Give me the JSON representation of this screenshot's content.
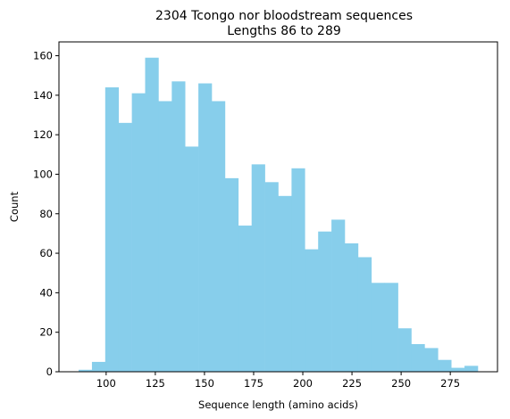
{
  "chart_data": {
    "type": "bar",
    "title": "2304 Tcongo nor bloodstream sequences",
    "subtitle": "Lengths 86 to 289",
    "xlabel": "Sequence length (amino acids)",
    "ylabel": "Count",
    "xlim": [
      76,
      299
    ],
    "ylim": [
      0,
      167
    ],
    "xticks": [
      100,
      125,
      150,
      175,
      200,
      225,
      250,
      275
    ],
    "yticks": [
      0,
      20,
      40,
      60,
      80,
      100,
      120,
      140,
      160
    ],
    "grid": false,
    "bar_color": "#87ceeb",
    "bins": [
      {
        "x0": 86.0,
        "x1": 92.77,
        "count": 1
      },
      {
        "x0": 92.77,
        "x1": 99.53,
        "count": 5
      },
      {
        "x0": 99.53,
        "x1": 106.3,
        "count": 144
      },
      {
        "x0": 106.3,
        "x1": 113.07,
        "count": 126
      },
      {
        "x0": 113.07,
        "x1": 119.83,
        "count": 141
      },
      {
        "x0": 119.83,
        "x1": 126.6,
        "count": 159
      },
      {
        "x0": 126.6,
        "x1": 133.37,
        "count": 137
      },
      {
        "x0": 133.37,
        "x1": 140.13,
        "count": 147
      },
      {
        "x0": 140.13,
        "x1": 146.9,
        "count": 114
      },
      {
        "x0": 146.9,
        "x1": 153.67,
        "count": 146
      },
      {
        "x0": 153.67,
        "x1": 160.43,
        "count": 137
      },
      {
        "x0": 160.43,
        "x1": 167.2,
        "count": 98
      },
      {
        "x0": 167.2,
        "x1": 173.97,
        "count": 74
      },
      {
        "x0": 173.97,
        "x1": 180.73,
        "count": 105
      },
      {
        "x0": 180.73,
        "x1": 187.5,
        "count": 96
      },
      {
        "x0": 187.5,
        "x1": 194.27,
        "count": 89
      },
      {
        "x0": 194.27,
        "x1": 201.03,
        "count": 103
      },
      {
        "x0": 201.03,
        "x1": 207.8,
        "count": 62
      },
      {
        "x0": 207.8,
        "x1": 214.57,
        "count": 71
      },
      {
        "x0": 214.57,
        "x1": 221.33,
        "count": 77
      },
      {
        "x0": 221.33,
        "x1": 228.1,
        "count": 65
      },
      {
        "x0": 228.1,
        "x1": 234.87,
        "count": 58
      },
      {
        "x0": 234.87,
        "x1": 241.63,
        "count": 45
      },
      {
        "x0": 241.63,
        "x1": 248.4,
        "count": 45
      },
      {
        "x0": 248.4,
        "x1": 255.17,
        "count": 22
      },
      {
        "x0": 255.17,
        "x1": 261.93,
        "count": 14
      },
      {
        "x0": 261.93,
        "x1": 268.7,
        "count": 12
      },
      {
        "x0": 268.7,
        "x1": 275.47,
        "count": 6
      },
      {
        "x0": 275.47,
        "x1": 282.23,
        "count": 2
      },
      {
        "x0": 282.23,
        "x1": 289.0,
        "count": 3
      }
    ]
  }
}
